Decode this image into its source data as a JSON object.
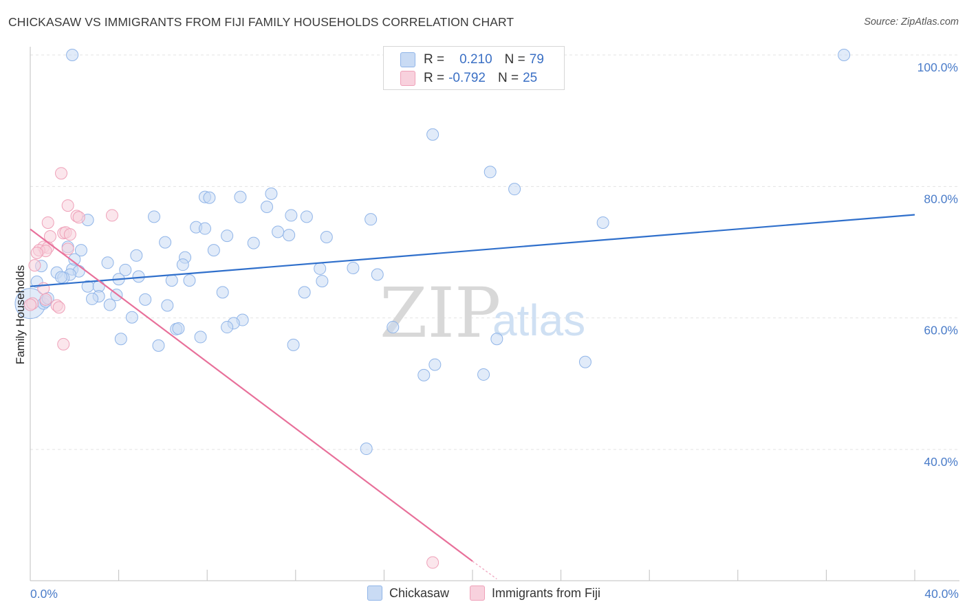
{
  "title": "CHICKASAW VS IMMIGRANTS FROM FIJI FAMILY HOUSEHOLDS CORRELATION CHART",
  "source": "Source: ZipAtlas.com",
  "legend": {
    "rows": [
      {
        "r_label": "R =",
        "r_value": "0.210",
        "n_label": "N =",
        "n_value": "79"
      },
      {
        "r_label": "R =",
        "r_value": "-0.792",
        "n_label": "N =",
        "n_value": "25"
      }
    ]
  },
  "watermark": {
    "zip": "ZIP",
    "atlas": "atlas"
  },
  "chart_data": {
    "type": "scatter",
    "ylabel": "Family Households",
    "xlim": [
      0,
      40
    ],
    "ylim": [
      20,
      102
    ],
    "x_tick_labels": [
      "0.0%",
      "40.0%"
    ],
    "y_ticks": [
      {
        "value": 100,
        "label": "100.0%"
      },
      {
        "value": 80,
        "label": "80.0%"
      },
      {
        "value": 60,
        "label": "60.0%"
      },
      {
        "value": 40,
        "label": "40.0%"
      }
    ],
    "series": [
      {
        "name": "Chickasaw",
        "color": "#8fb4e8",
        "fill": "#c9dbf4",
        "trend_color": "#2f6fcb",
        "trend": {
          "x0": 0,
          "y0": 64.8,
          "x1": 40,
          "y1": 75.7
        },
        "points": [
          [
            1.9,
            100
          ],
          [
            36.8,
            100
          ],
          [
            18.2,
            87.9
          ],
          [
            20.8,
            82.2
          ],
          [
            21.9,
            79.6
          ],
          [
            7.9,
            78.4
          ],
          [
            8.1,
            78.3
          ],
          [
            9.5,
            78.4
          ],
          [
            10.9,
            78.9
          ],
          [
            10.7,
            76.9
          ],
          [
            11.8,
            75.6
          ],
          [
            12.5,
            75.4
          ],
          [
            5.6,
            75.4
          ],
          [
            2.6,
            74.9
          ],
          [
            15.4,
            75
          ],
          [
            25.9,
            74.5
          ],
          [
            7.5,
            73.8
          ],
          [
            7.9,
            73.6
          ],
          [
            11.2,
            73.1
          ],
          [
            11.7,
            72.6
          ],
          [
            8.9,
            72.5
          ],
          [
            13.4,
            72.3
          ],
          [
            6.1,
            71.5
          ],
          [
            10.1,
            71.4
          ],
          [
            1.7,
            70.8
          ],
          [
            8.3,
            70.3
          ],
          [
            2.3,
            70.3
          ],
          [
            4.8,
            69.5
          ],
          [
            7.0,
            69.2
          ],
          [
            3.5,
            68.4
          ],
          [
            6.9,
            68.1
          ],
          [
            0.5,
            67.9
          ],
          [
            1.9,
            67.4
          ],
          [
            2.2,
            67.1
          ],
          [
            13.1,
            67.5
          ],
          [
            14.6,
            67.6
          ],
          [
            4.3,
            67.3
          ],
          [
            1.2,
            66.9
          ],
          [
            1.8,
            66.6
          ],
          [
            4.9,
            66.3
          ],
          [
            4.0,
            65.9
          ],
          [
            1.5,
            66.1
          ],
          [
            6.4,
            65.7
          ],
          [
            7.2,
            65.7
          ],
          [
            13.2,
            65.6
          ],
          [
            15.7,
            66.6
          ],
          [
            0.3,
            65.5
          ],
          [
            2.6,
            64.8
          ],
          [
            3.1,
            64.8
          ],
          [
            8.7,
            63.9
          ],
          [
            12.4,
            63.9
          ],
          [
            3.1,
            63.3
          ],
          [
            3.9,
            63.5
          ],
          [
            2.8,
            62.9
          ],
          [
            5.2,
            62.8
          ],
          [
            0.6,
            62.2
          ],
          [
            0.7,
            62.5
          ],
          [
            3.6,
            62.0
          ],
          [
            6.2,
            61.9
          ],
          [
            4.6,
            60.1
          ],
          [
            9.6,
            59.7
          ],
          [
            9.2,
            59.2
          ],
          [
            8.9,
            58.6
          ],
          [
            6.6,
            58.3
          ],
          [
            6.7,
            58.4
          ],
          [
            16.4,
            58.6
          ],
          [
            4.1,
            56.8
          ],
          [
            7.7,
            57.1
          ],
          [
            5.8,
            55.8
          ],
          [
            11.9,
            55.9
          ],
          [
            21.1,
            56.8
          ],
          [
            25.1,
            53.3
          ],
          [
            18.3,
            52.9
          ],
          [
            17.8,
            51.3
          ],
          [
            20.5,
            51.4
          ],
          [
            15.2,
            40.1
          ],
          [
            0.8,
            63.0
          ],
          [
            1.4,
            66.2
          ],
          [
            2.0,
            68.9
          ]
        ]
      },
      {
        "name": "Immigrants from Fiji",
        "color": "#efa0b8",
        "fill": "#f8d1dd",
        "trend_color": "#e8709a",
        "trend": {
          "x0": 0,
          "y0": 73.5,
          "x1": 20,
          "y1": 23.0
        },
        "trend_dash": {
          "x0": 20,
          "y0": 23.0,
          "x1": 21.1,
          "y1": 20.3
        },
        "points": [
          [
            1.4,
            82
          ],
          [
            1.7,
            77.1
          ],
          [
            2.1,
            75.5
          ],
          [
            2.2,
            75.3
          ],
          [
            3.7,
            75.6
          ],
          [
            0.8,
            74.5
          ],
          [
            1.5,
            72.9
          ],
          [
            1.6,
            73.0
          ],
          [
            1.8,
            72.7
          ],
          [
            0.9,
            72.4
          ],
          [
            0.6,
            70.8
          ],
          [
            0.8,
            70.7
          ],
          [
            1.7,
            70.5
          ],
          [
            0.4,
            70.3
          ],
          [
            0.7,
            70.2
          ],
          [
            0.3,
            69.9
          ],
          [
            0.2,
            68.0
          ],
          [
            0.6,
            64.5
          ],
          [
            0.7,
            62.8
          ],
          [
            1.2,
            61.9
          ],
          [
            1.3,
            61.6
          ],
          [
            0.1,
            62.2
          ],
          [
            0.0,
            62.0
          ],
          [
            1.5,
            56.0
          ],
          [
            18.2,
            22.8
          ]
        ]
      }
    ]
  }
}
